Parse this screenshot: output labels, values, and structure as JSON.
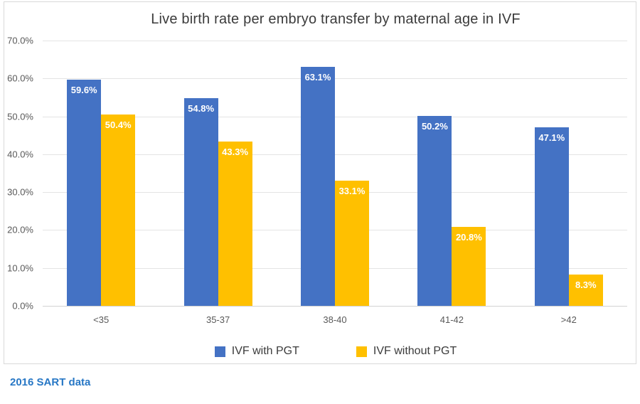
{
  "chart_data": {
    "type": "bar",
    "title": "Live birth rate per embryo transfer by maternal age in IVF",
    "categories": [
      "<35",
      "35-37",
      "38-40",
      "41-42",
      ">42"
    ],
    "series": [
      {
        "name": "IVF with PGT",
        "color": "#4472C4",
        "values": [
          59.6,
          54.8,
          63.1,
          50.2,
          47.1
        ],
        "labels": [
          "59.6%",
          "54.8%",
          "63.1%",
          "50.2%",
          "47.1%"
        ]
      },
      {
        "name": "IVF without PGT",
        "color": "#FFC000",
        "values": [
          50.4,
          43.3,
          33.1,
          20.8,
          8.3
        ],
        "labels": [
          "50.4%",
          "43.3%",
          "33.1%",
          "20.8%",
          "8.3%"
        ]
      }
    ],
    "xlabel": "",
    "ylabel": "",
    "ylim": [
      0,
      70
    ],
    "ytick_step": 10,
    "ytick_labels": [
      "0.0%",
      "10.0%",
      "20.0%",
      "30.0%",
      "40.0%",
      "50.0%",
      "60.0%",
      "70.0%"
    ],
    "grid": true,
    "legend_position": "bottom"
  },
  "footer": {
    "text": "2016 SART data",
    "color": "#2777C5"
  },
  "colors": {
    "chart_border": "#d9d9d9",
    "gridline": "#e4e4e4",
    "axis_text": "#595959",
    "title_text": "#3b3b3b",
    "bar_label_text": "#ffffff"
  }
}
